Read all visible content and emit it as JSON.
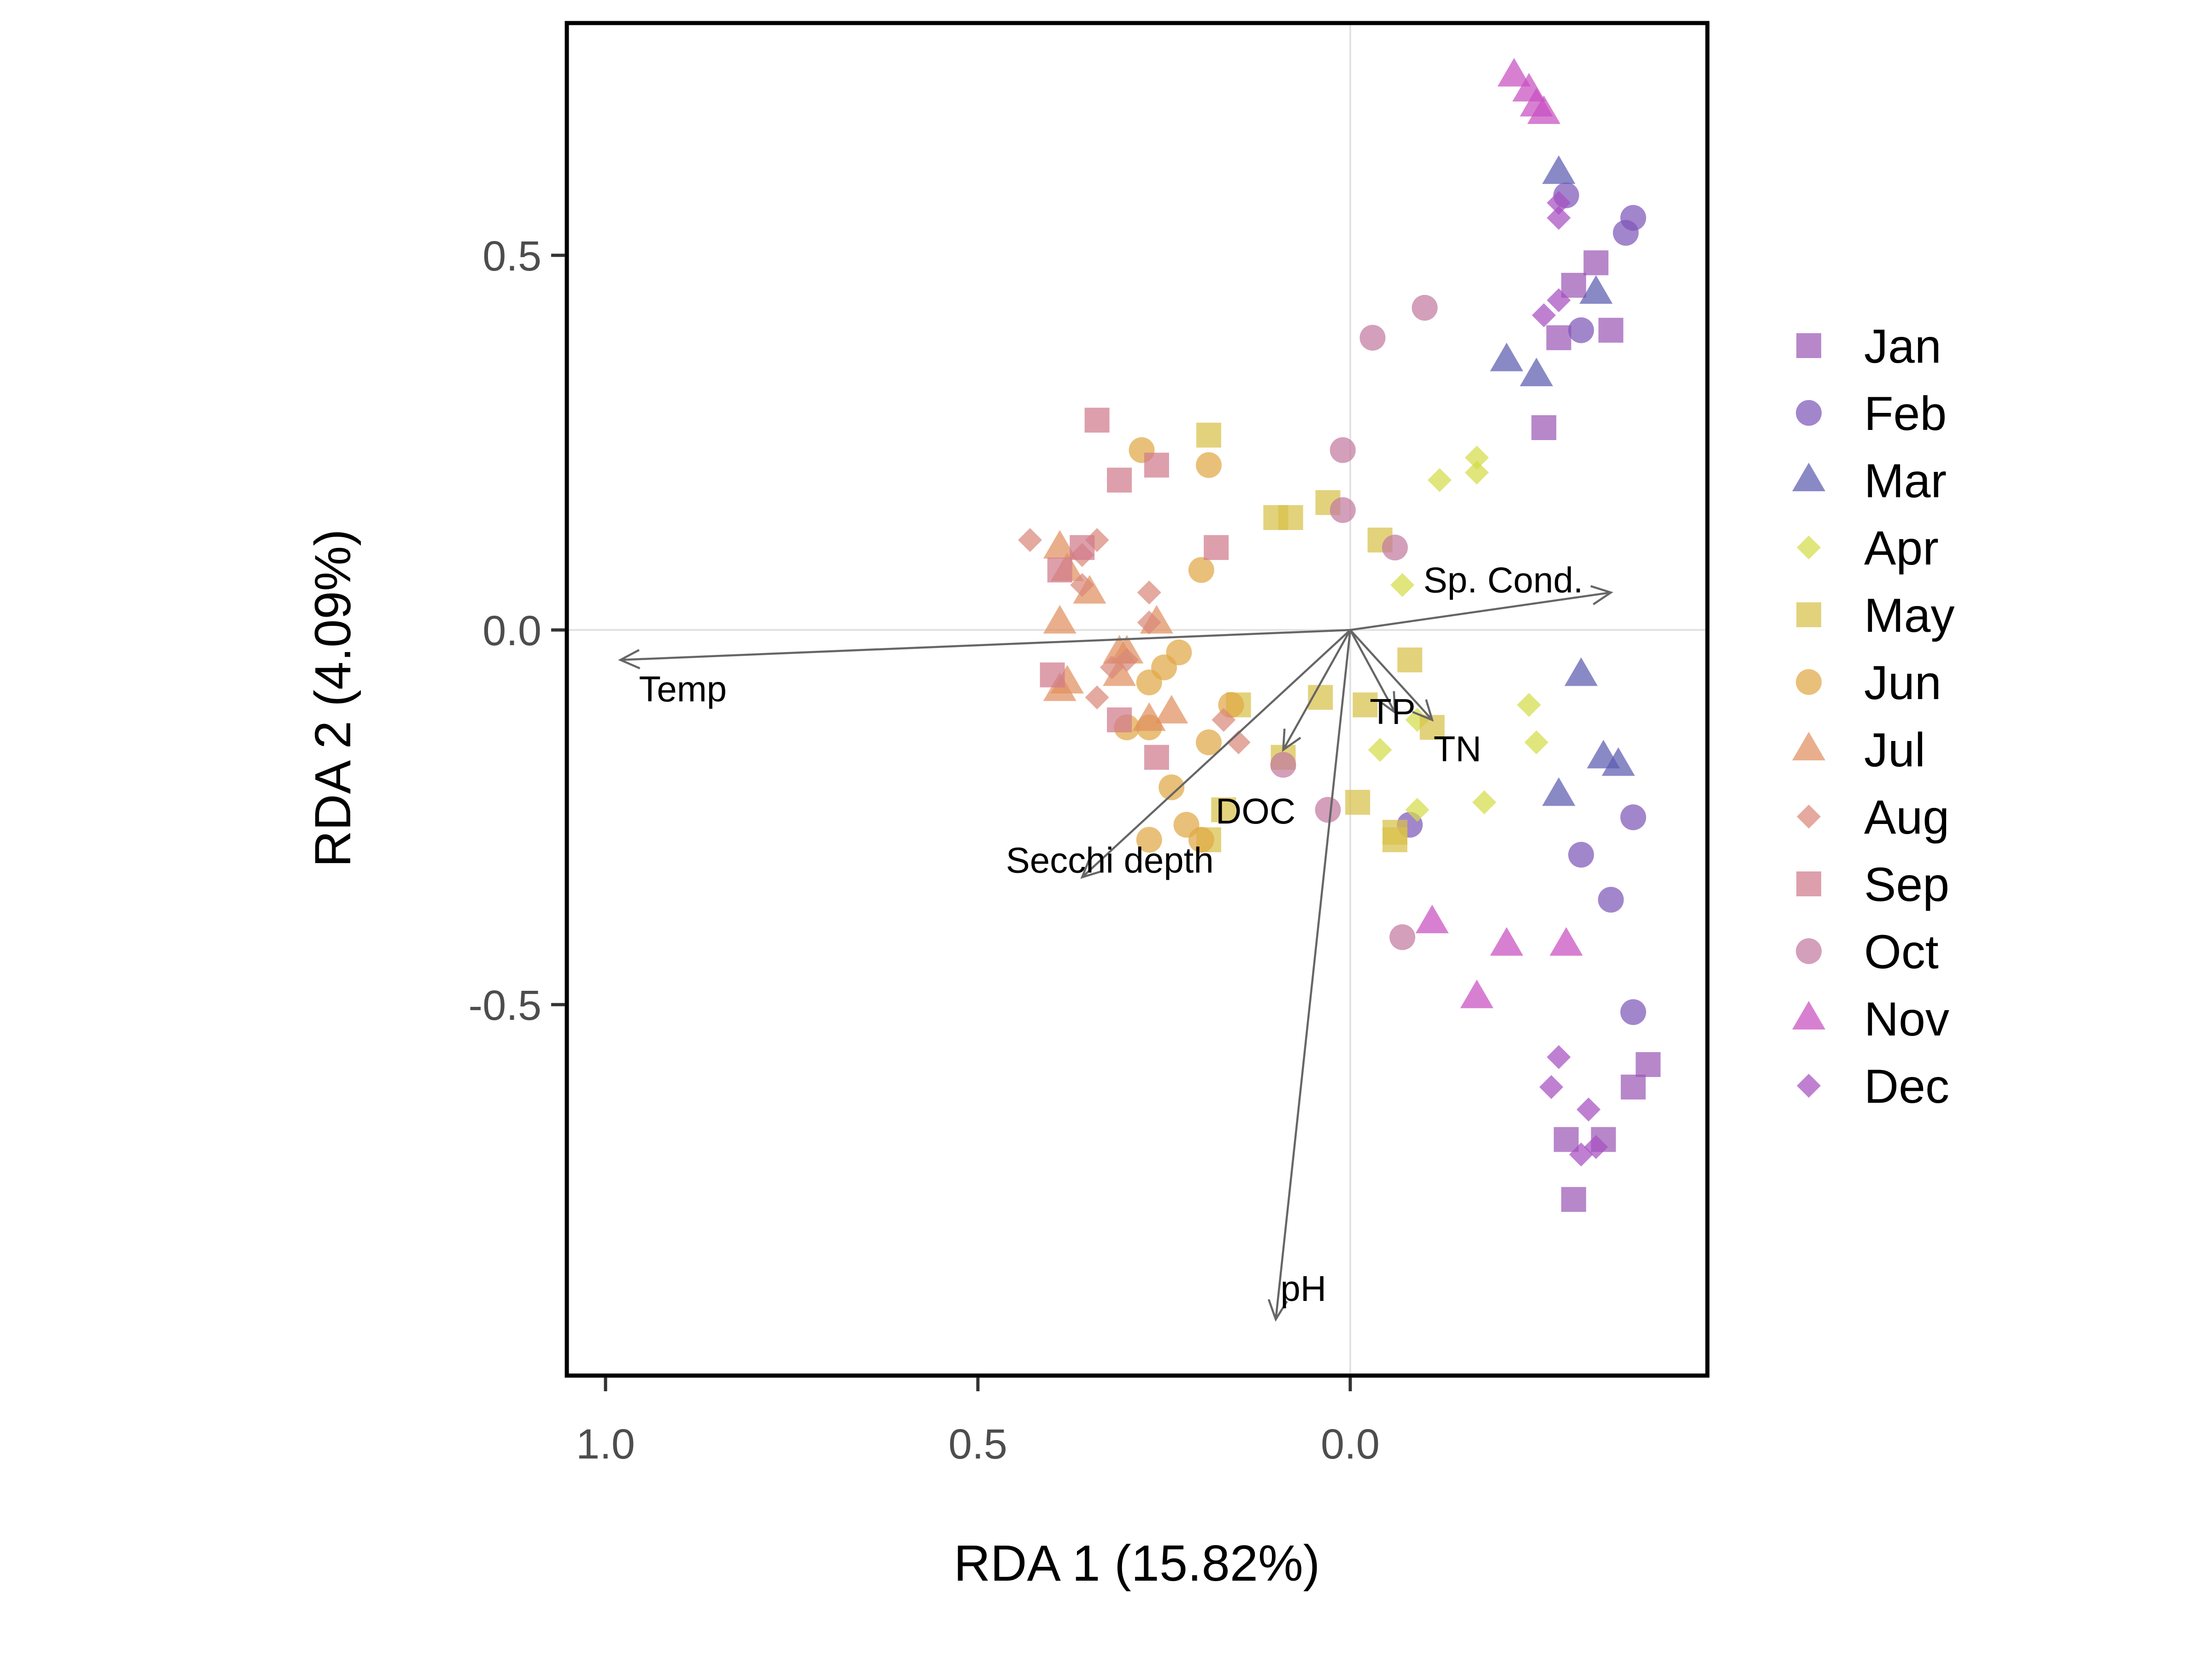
{
  "chart_data": {
    "type": "scatter",
    "title": "",
    "xlabel": "RDA 1 (15.82%)",
    "ylabel": "RDA 2 (4.09%)",
    "x_reversed": true,
    "xlim": [
      1.05,
      -0.47
    ],
    "ylim": [
      -0.99,
      0.81
    ],
    "x_ticks": [
      1.0,
      0.5,
      0.0
    ],
    "x_tick_labels": [
      "1.0",
      "0.5",
      "0.0"
    ],
    "y_ticks": [
      0.5,
      0.0,
      -0.5
    ],
    "y_tick_labels": [
      "0.5",
      "0.0",
      "-0.5"
    ],
    "grid": "zero-lines",
    "legend_position": "right",
    "series": [
      {
        "name": "Jan",
        "color": "#9b59b6",
        "shape": "square",
        "points": [
          [
            -0.3,
            0.46
          ],
          [
            -0.33,
            0.49
          ],
          [
            -0.28,
            0.39
          ],
          [
            -0.35,
            0.4
          ],
          [
            -0.26,
            0.27
          ],
          [
            -0.4,
            -0.58
          ],
          [
            -0.38,
            -0.61
          ],
          [
            -0.34,
            -0.68
          ],
          [
            -0.29,
            -0.68
          ],
          [
            -0.3,
            -0.76
          ]
        ]
      },
      {
        "name": "Feb",
        "color": "#7e57b8",
        "shape": "circle",
        "points": [
          [
            -0.29,
            0.58
          ],
          [
            -0.38,
            0.55
          ],
          [
            -0.37,
            0.53
          ],
          [
            -0.31,
            0.4
          ],
          [
            -0.35,
            -0.36
          ],
          [
            -0.38,
            -0.25
          ],
          [
            -0.31,
            -0.3
          ],
          [
            -0.38,
            -0.51
          ],
          [
            -0.08,
            -0.26
          ]
        ]
      },
      {
        "name": "Mar",
        "color": "#5b5bb0",
        "shape": "triangle",
        "points": [
          [
            -0.28,
            0.61
          ],
          [
            -0.33,
            0.45
          ],
          [
            -0.21,
            0.36
          ],
          [
            -0.25,
            0.34
          ],
          [
            -0.31,
            -0.06
          ],
          [
            -0.34,
            -0.17
          ],
          [
            -0.36,
            -0.18
          ],
          [
            -0.28,
            -0.22
          ]
        ]
      },
      {
        "name": "Apr",
        "color": "#d4dc4a",
        "shape": "diamond",
        "points": [
          [
            -0.17,
            0.23
          ],
          [
            -0.12,
            0.2
          ],
          [
            -0.17,
            0.21
          ],
          [
            -0.07,
            0.06
          ],
          [
            -0.24,
            -0.1
          ],
          [
            -0.25,
            -0.15
          ],
          [
            -0.09,
            -0.12
          ],
          [
            -0.04,
            -0.16
          ],
          [
            -0.18,
            -0.23
          ],
          [
            -0.09,
            -0.24
          ]
        ]
      },
      {
        "name": "May",
        "color": "#d8c04a",
        "shape": "square",
        "points": [
          [
            0.19,
            0.26
          ],
          [
            0.1,
            0.15
          ],
          [
            0.08,
            0.15
          ],
          [
            0.03,
            0.17
          ],
          [
            -0.04,
            0.12
          ],
          [
            -0.08,
            -0.04
          ],
          [
            0.15,
            -0.1
          ],
          [
            0.04,
            -0.09
          ],
          [
            -0.02,
            -0.1
          ],
          [
            -0.11,
            -0.13
          ],
          [
            0.09,
            -0.17
          ],
          [
            0.17,
            -0.24
          ],
          [
            -0.01,
            -0.23
          ],
          [
            -0.06,
            -0.27
          ],
          [
            -0.06,
            -0.28
          ],
          [
            0.19,
            -0.28
          ]
        ]
      },
      {
        "name": "Jun",
        "color": "#e0a845",
        "shape": "circle",
        "points": [
          [
            0.28,
            0.24
          ],
          [
            0.19,
            0.22
          ],
          [
            0.2,
            0.08
          ],
          [
            0.23,
            -0.03
          ],
          [
            0.25,
            -0.05
          ],
          [
            0.16,
            -0.1
          ],
          [
            0.27,
            -0.07
          ],
          [
            0.3,
            -0.13
          ],
          [
            0.27,
            -0.13
          ],
          [
            0.19,
            -0.15
          ],
          [
            0.24,
            -0.21
          ],
          [
            0.22,
            -0.26
          ],
          [
            0.2,
            -0.28
          ],
          [
            0.27,
            -0.28
          ]
        ]
      },
      {
        "name": "Jul",
        "color": "#e09060",
        "shape": "triangle",
        "points": [
          [
            0.39,
            0.11
          ],
          [
            0.38,
            0.08
          ],
          [
            0.35,
            0.05
          ],
          [
            0.39,
            0.01
          ],
          [
            0.26,
            0.01
          ],
          [
            0.31,
            -0.03
          ],
          [
            0.3,
            -0.03
          ],
          [
            0.38,
            -0.07
          ],
          [
            0.39,
            -0.08
          ],
          [
            0.31,
            -0.06
          ],
          [
            0.24,
            -0.11
          ],
          [
            0.27,
            -0.12
          ]
        ]
      },
      {
        "name": "Aug",
        "color": "#d9887a",
        "shape": "diamond",
        "points": [
          [
            0.43,
            0.12
          ],
          [
            0.36,
            0.1
          ],
          [
            0.34,
            0.12
          ],
          [
            0.36,
            0.06
          ],
          [
            0.27,
            0.05
          ],
          [
            0.27,
            0.01
          ],
          [
            0.34,
            -0.09
          ],
          [
            0.32,
            -0.05
          ],
          [
            0.3,
            -0.04
          ],
          [
            0.15,
            -0.15
          ],
          [
            0.17,
            -0.12
          ]
        ]
      },
      {
        "name": "Sep",
        "color": "#d07a8c",
        "shape": "square",
        "points": [
          [
            0.34,
            0.28
          ],
          [
            0.26,
            0.22
          ],
          [
            0.31,
            0.2
          ],
          [
            0.36,
            0.11
          ],
          [
            0.18,
            0.11
          ],
          [
            0.39,
            0.08
          ],
          [
            0.4,
            -0.06
          ],
          [
            0.31,
            -0.12
          ],
          [
            0.26,
            -0.17
          ]
        ]
      },
      {
        "name": "Oct",
        "color": "#c27aa0",
        "shape": "circle",
        "points": [
          [
            -0.1,
            0.43
          ],
          [
            -0.03,
            0.39
          ],
          [
            0.01,
            0.24
          ],
          [
            0.01,
            0.16
          ],
          [
            -0.06,
            0.11
          ],
          [
            0.03,
            -0.24
          ],
          [
            -0.07,
            -0.41
          ],
          [
            0.09,
            -0.18
          ]
        ]
      },
      {
        "name": "Nov",
        "color": "#c84fc0",
        "shape": "triangle",
        "points": [
          [
            -0.22,
            0.74
          ],
          [
            -0.24,
            0.72
          ],
          [
            -0.25,
            0.7
          ],
          [
            -0.26,
            0.69
          ],
          [
            -0.11,
            -0.39
          ],
          [
            -0.21,
            -0.42
          ],
          [
            -0.29,
            -0.42
          ],
          [
            -0.17,
            -0.49
          ]
        ]
      },
      {
        "name": "Dec",
        "color": "#a64fc0",
        "shape": "diamond",
        "points": [
          [
            -0.28,
            0.57
          ],
          [
            -0.28,
            0.55
          ],
          [
            -0.26,
            0.42
          ],
          [
            -0.28,
            0.44
          ],
          [
            -0.28,
            -0.57
          ],
          [
            -0.27,
            -0.61
          ],
          [
            -0.32,
            -0.64
          ],
          [
            -0.33,
            -0.69
          ],
          [
            -0.31,
            -0.7
          ]
        ]
      }
    ],
    "vectors": [
      {
        "label": "Temp",
        "x": 0.98,
        "y": -0.04
      },
      {
        "label": "Sp. Cond.",
        "x": -0.35,
        "y": 0.05
      },
      {
        "label": "TP",
        "x": -0.06,
        "y": -0.11
      },
      {
        "label": "TN",
        "x": -0.11,
        "y": -0.12
      },
      {
        "label": "DOC",
        "x": 0.09,
        "y": -0.16
      },
      {
        "label": "Secchi depth",
        "x": 0.36,
        "y": -0.33
      },
      {
        "label": "pH",
        "x": 0.1,
        "y": -0.92
      }
    ]
  }
}
